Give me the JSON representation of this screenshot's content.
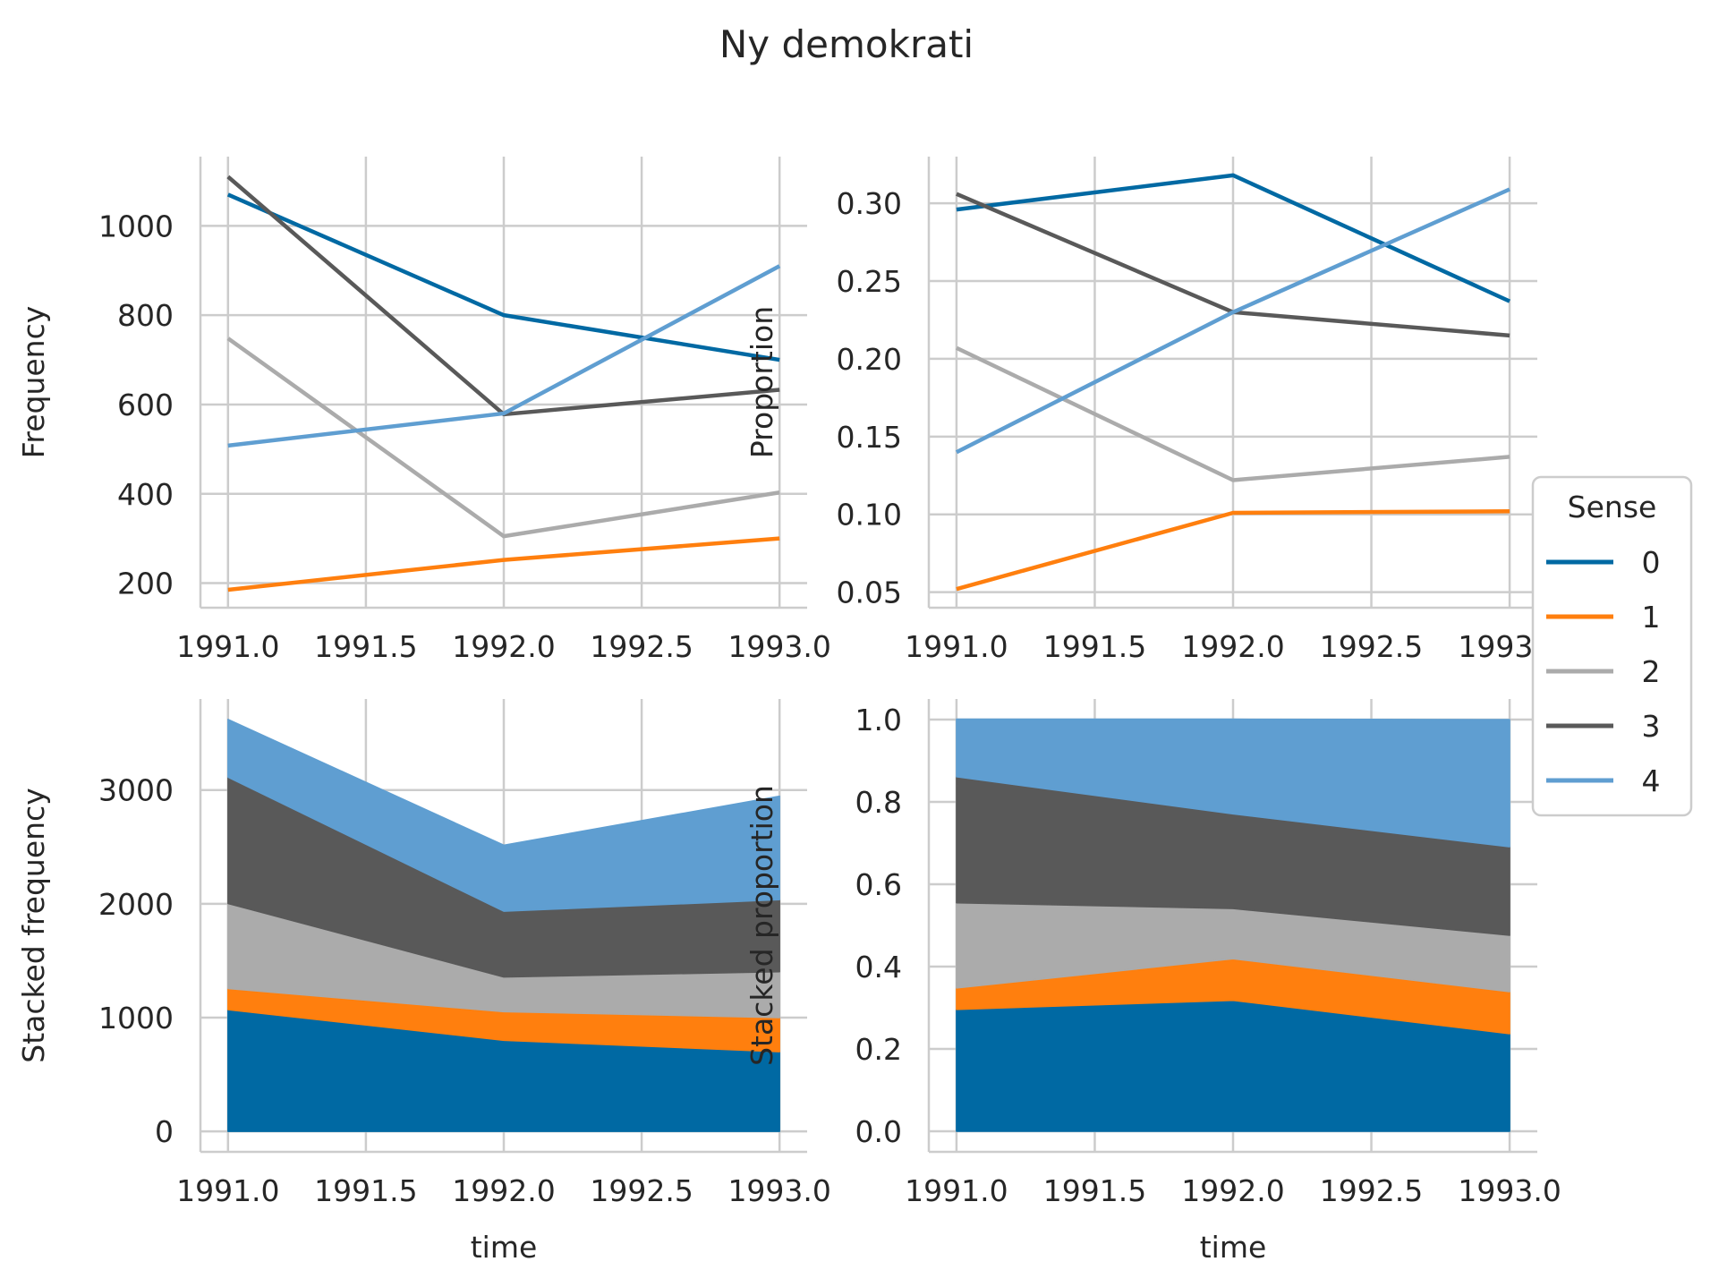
{
  "title": "Ny demokrati",
  "legend": {
    "title": "Sense",
    "placement": "right"
  },
  "colors": [
    "#0069a3",
    "#ff7f0e",
    "#ababab",
    "#595959",
    "#5f9ed1"
  ],
  "chart_data": [
    {
      "type": "line",
      "xlabel": "",
      "ylabel": "Frequency",
      "x": [
        1991,
        1992,
        1993
      ],
      "xticks": [
        "1991.0",
        "1991.5",
        "1992.0",
        "1992.5",
        "1993.0"
      ],
      "yticks": [
        "200",
        "400",
        "600",
        "800",
        "1000"
      ],
      "xlim": [
        1990.9,
        1993.1
      ],
      "ylim": [
        145,
        1155
      ],
      "grid": true,
      "series": [
        {
          "name": "0",
          "values": [
            1070,
            800,
            700
          ]
        },
        {
          "name": "1",
          "values": [
            185,
            252,
            300
          ]
        },
        {
          "name": "2",
          "values": [
            748,
            305,
            403
          ]
        },
        {
          "name": "3",
          "values": [
            1110,
            578,
            633
          ]
        },
        {
          "name": "4",
          "values": [
            508,
            580,
            910
          ]
        }
      ]
    },
    {
      "type": "line",
      "xlabel": "",
      "ylabel": "Proportion",
      "x": [
        1991,
        1992,
        1993
      ],
      "xticks": [
        "1991.0",
        "1991.5",
        "1992.0",
        "1992.5",
        "1993.0"
      ],
      "yticks": [
        "0.05",
        "0.10",
        "0.15",
        "0.20",
        "0.25",
        "0.30"
      ],
      "xlim": [
        1990.9,
        1993.1
      ],
      "ylim": [
        0.04,
        0.33
      ],
      "grid": true,
      "series": [
        {
          "name": "0",
          "values": [
            0.296,
            0.318,
            0.237
          ]
        },
        {
          "name": "1",
          "values": [
            0.052,
            0.101,
            0.102
          ]
        },
        {
          "name": "2",
          "values": [
            0.207,
            0.122,
            0.137
          ]
        },
        {
          "name": "3",
          "values": [
            0.306,
            0.23,
            0.215
          ]
        },
        {
          "name": "4",
          "values": [
            0.14,
            0.23,
            0.309
          ]
        }
      ]
    },
    {
      "type": "area",
      "stacked": true,
      "xlabel": "time",
      "ylabel": "Stacked frequency",
      "x": [
        1991,
        1992,
        1993
      ],
      "xticks": [
        "1991.0",
        "1991.5",
        "1992.0",
        "1992.5",
        "1993.0"
      ],
      "yticks": [
        "0",
        "1000",
        "2000",
        "3000"
      ],
      "xlim": [
        1990.9,
        1993.1
      ],
      "ylim": [
        -180,
        3800
      ],
      "grid": true,
      "series": [
        {
          "name": "0",
          "values": [
            1070,
            800,
            700
          ]
        },
        {
          "name": "1",
          "values": [
            185,
            252,
            300
          ]
        },
        {
          "name": "2",
          "values": [
            748,
            305,
            403
          ]
        },
        {
          "name": "3",
          "values": [
            1110,
            578,
            633
          ]
        },
        {
          "name": "4",
          "values": [
            508,
            580,
            910
          ]
        }
      ]
    },
    {
      "type": "area",
      "stacked": true,
      "xlabel": "time",
      "ylabel": "Stacked proportion",
      "x": [
        1991,
        1992,
        1993
      ],
      "xticks": [
        "1991.0",
        "1991.5",
        "1992.0",
        "1992.5",
        "1993.0"
      ],
      "yticks": [
        "0.0",
        "0.2",
        "0.4",
        "0.6",
        "0.8",
        "1.0"
      ],
      "xlim": [
        1990.9,
        1993.1
      ],
      "ylim": [
        -0.05,
        1.05
      ],
      "grid": true,
      "series": [
        {
          "name": "0",
          "values": [
            0.296,
            0.318,
            0.237
          ]
        },
        {
          "name": "1",
          "values": [
            0.052,
            0.101,
            0.102
          ]
        },
        {
          "name": "2",
          "values": [
            0.207,
            0.122,
            0.137
          ]
        },
        {
          "name": "3",
          "values": [
            0.306,
            0.23,
            0.215
          ]
        },
        {
          "name": "4",
          "values": [
            0.14,
            0.23,
            0.309
          ]
        }
      ]
    }
  ]
}
